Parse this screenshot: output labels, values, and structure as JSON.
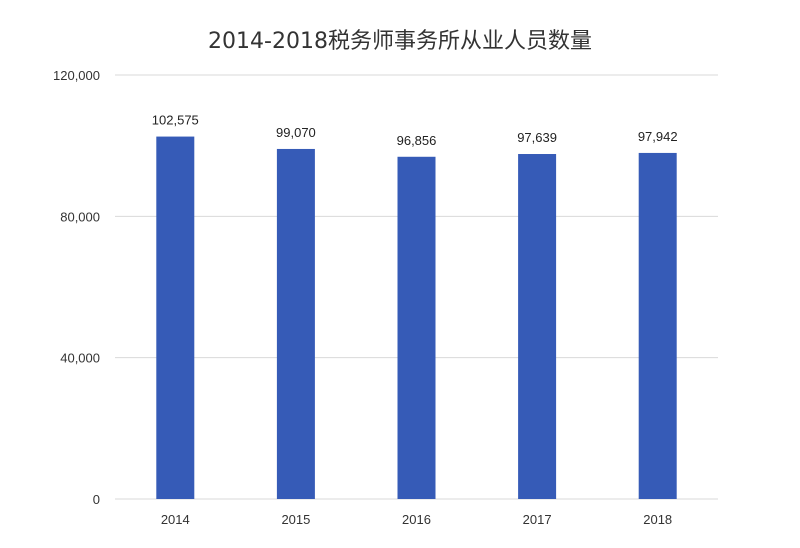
{
  "chart_data": {
    "type": "bar",
    "title": "2014-2018税务师事务所从业人员数量",
    "categories": [
      "2014",
      "2015",
      "2016",
      "2017",
      "2018"
    ],
    "values": [
      102575,
      99070,
      96856,
      97639,
      97942
    ],
    "data_labels": [
      "102,575",
      "99,070",
      "96,856",
      "97,639",
      "97,942"
    ],
    "ylim": [
      0,
      120000
    ],
    "yticks": [
      0,
      40000,
      80000,
      120000
    ],
    "ytick_labels": [
      "0",
      "40,000",
      "80,000",
      "120,000"
    ],
    "xlabel": "",
    "ylabel": "",
    "grid": true,
    "legend": "none",
    "bar_color": "#365bb7"
  }
}
